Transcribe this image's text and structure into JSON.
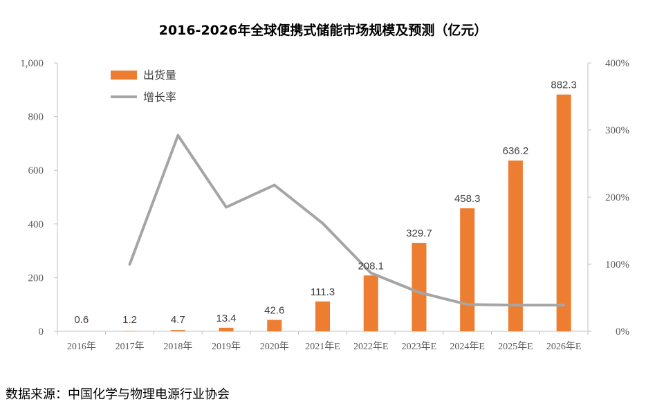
{
  "chart_data": {
    "type": "bar+line",
    "title": "2016-2026年全球便携式储能市场规模及预测（亿元）",
    "categories": [
      "2016年",
      "2017年",
      "2018年",
      "2019年",
      "2020年",
      "2021年E",
      "2022年E",
      "2023年E",
      "2024年E",
      "2025年E",
      "2026年E"
    ],
    "series": [
      {
        "name": "出货量",
        "type": "bar",
        "axis": "left",
        "color": "#ED7D31",
        "values": [
          0.6,
          1.2,
          4.7,
          13.4,
          42.6,
          111.3,
          208.1,
          329.7,
          458.3,
          636.2,
          882.3
        ],
        "labels": [
          "0.6",
          "1.2",
          "4.7",
          "13.4",
          "42.6",
          "111.3",
          "208.1",
          "329.7",
          "458.3",
          "636.2",
          "882.3"
        ]
      },
      {
        "name": "增长率",
        "type": "line",
        "axis": "right",
        "color": "#A5A5A5",
        "values": [
          null,
          100,
          292,
          185,
          218,
          161,
          87,
          58,
          40,
          39,
          39
        ]
      }
    ],
    "left_axis": {
      "ylim": [
        0,
        1000
      ],
      "ticks": [
        0,
        200,
        400,
        600,
        800,
        1000
      ],
      "tick_labels": [
        "0",
        "200",
        "400",
        "600",
        "800",
        "1,000"
      ]
    },
    "right_axis": {
      "ylim": [
        0,
        400
      ],
      "ticks": [
        0,
        100,
        200,
        300,
        400
      ],
      "tick_labels": [
        "0%",
        "100%",
        "200%",
        "300%",
        "400%"
      ]
    },
    "legend": {
      "position": "top-left",
      "entries": [
        "出货量",
        "增长率"
      ]
    },
    "grid": false
  },
  "source_text": "数据来源：中国化学与物理电源行业协会"
}
